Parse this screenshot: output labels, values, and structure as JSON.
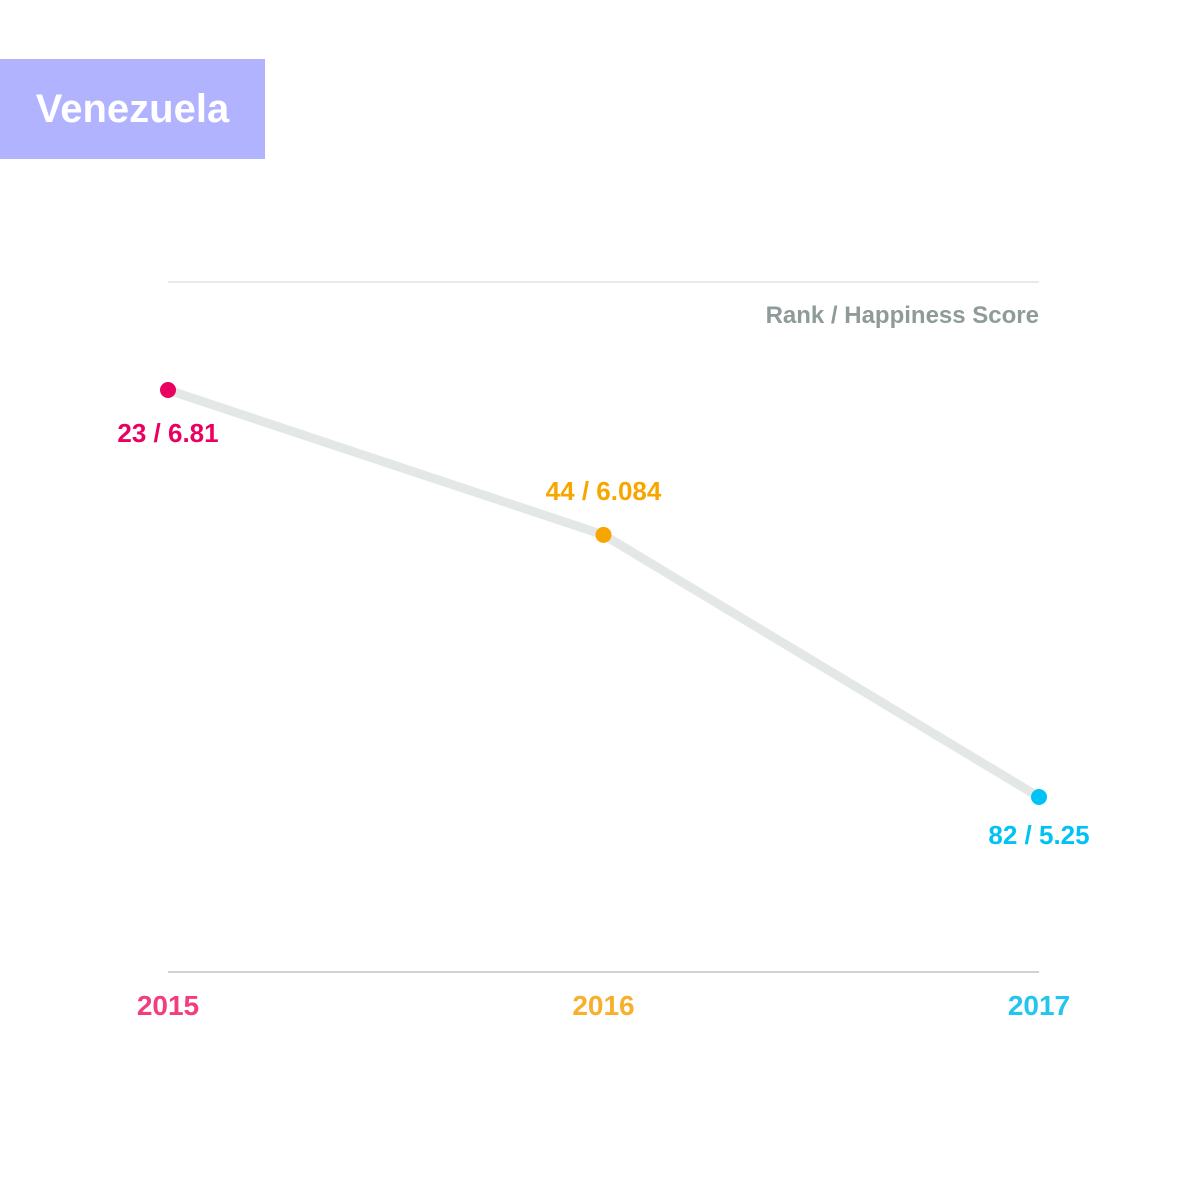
{
  "country": "Venezuela",
  "chart_data": {
    "type": "line",
    "ylabel": "Rank / Happiness Score",
    "x": [
      "2015",
      "2016",
      "2017"
    ],
    "rank": [
      23,
      44,
      82
    ],
    "score": [
      6.81,
      6.084,
      5.25
    ],
    "point_labels": [
      "23 / 6.81",
      "44 / 6.084",
      "82 / 5.25"
    ],
    "y_axis_inverted": true,
    "grid": false,
    "line_color": "#e3e8e6",
    "point_colors": [
      "#ea005e",
      "#f7a600",
      "#00c3f5"
    ],
    "tick_colors": [
      "#f23d7f",
      "#f8b02a",
      "#22c5ee"
    ]
  },
  "colors": {
    "badge_bg": "#b1b3ff",
    "axis_line": "#cdd3d1",
    "axis_label": "#8e9b98"
  }
}
